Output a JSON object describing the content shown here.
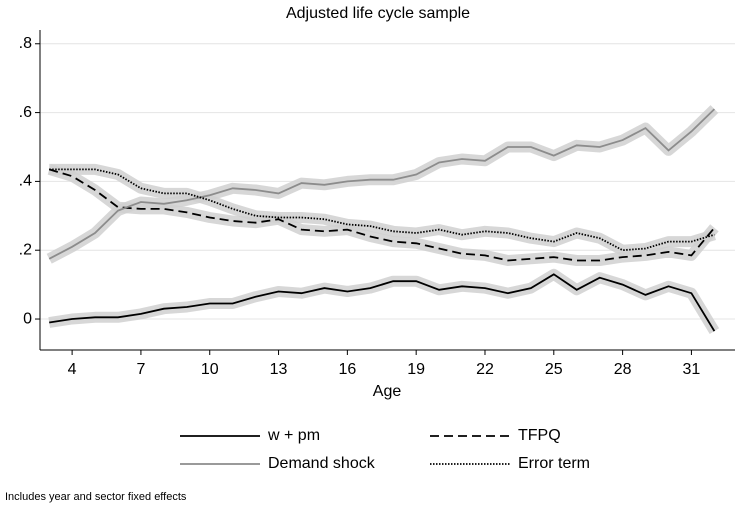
{
  "chart_data": {
    "type": "line",
    "subtitle": "Adjusted life cycle sample",
    "x_label": "Age",
    "note": "Includes year and sector fixed effects",
    "x": [
      3,
      4,
      5,
      6,
      7,
      8,
      9,
      10,
      11,
      12,
      13,
      14,
      15,
      16,
      17,
      18,
      19,
      20,
      21,
      22,
      23,
      24,
      25,
      26,
      27,
      28,
      29,
      30,
      31,
      32
    ],
    "xlim": [
      2.6,
      32.9
    ],
    "xticks": [
      4,
      7,
      10,
      13,
      16,
      19,
      22,
      25,
      28,
      31
    ],
    "ylim": [
      -0.09,
      0.84
    ],
    "yticks": [
      0,
      {
        "value": 0.2,
        "label": ".2"
      },
      {
        "value": 0.4,
        "label": ".4"
      },
      {
        "value": 0.6,
        "label": ".6"
      },
      {
        "value": 0.8,
        "label": ".8"
      }
    ],
    "grid": true,
    "series": [
      {
        "name": "w + pm",
        "color": "#000000",
        "dash": "solid",
        "values": [
          -0.01,
          0.0,
          0.005,
          0.005,
          0.015,
          0.03,
          0.035,
          0.045,
          0.045,
          0.065,
          0.08,
          0.075,
          0.09,
          0.08,
          0.09,
          0.11,
          0.11,
          0.085,
          0.095,
          0.09,
          0.075,
          0.09,
          0.13,
          0.085,
          0.12,
          0.1,
          0.07,
          0.095,
          0.075,
          -0.035
        ]
      },
      {
        "name": "TFPQ",
        "color": "#000000",
        "dash": "dashed",
        "values": [
          0.435,
          0.415,
          0.375,
          0.325,
          0.32,
          0.32,
          0.31,
          0.295,
          0.285,
          0.28,
          0.29,
          0.26,
          0.255,
          0.26,
          0.24,
          0.225,
          0.22,
          0.205,
          0.19,
          0.185,
          0.17,
          0.175,
          0.18,
          0.17,
          0.17,
          0.18,
          0.185,
          0.195,
          0.185,
          0.265
        ]
      },
      {
        "name": "Demand shock",
        "color": "#8c8c8c",
        "dash": "solid",
        "values": [
          0.175,
          0.21,
          0.25,
          0.315,
          0.34,
          0.335,
          0.345,
          0.36,
          0.38,
          0.375,
          0.365,
          0.395,
          0.39,
          0.4,
          0.405,
          0.405,
          0.42,
          0.455,
          0.465,
          0.46,
          0.5,
          0.5,
          0.475,
          0.505,
          0.5,
          0.52,
          0.555,
          0.49,
          0.545,
          0.61
        ]
      },
      {
        "name": "Error term",
        "color": "#000000",
        "dash": "dotted",
        "values": [
          0.435,
          0.435,
          0.435,
          0.42,
          0.38,
          0.365,
          0.365,
          0.345,
          0.32,
          0.3,
          0.295,
          0.295,
          0.29,
          0.275,
          0.27,
          0.255,
          0.25,
          0.26,
          0.245,
          0.255,
          0.25,
          0.235,
          0.225,
          0.25,
          0.235,
          0.2,
          0.205,
          0.225,
          0.225,
          0.245
        ]
      }
    ]
  }
}
